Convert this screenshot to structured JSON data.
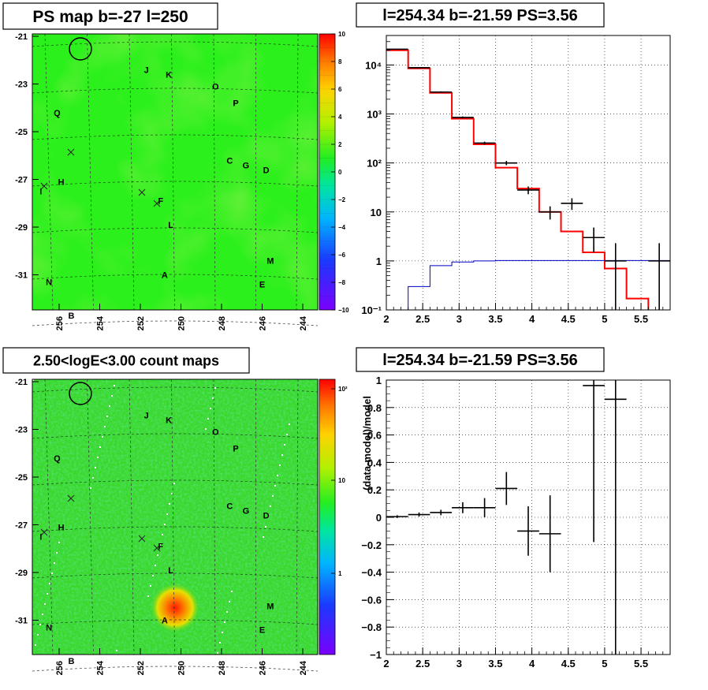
{
  "chart_data": [
    {
      "type": "heatmap",
      "title": "PS map b=-27 l=250",
      "x_ticks": [
        "256",
        "254",
        "252",
        "250",
        "248",
        "246",
        "244"
      ],
      "y_ticks": [
        "-21",
        "-23",
        "-25",
        "-27",
        "-29",
        "-31"
      ],
      "colorbar_ticks": [
        "10",
        "8",
        "6",
        "4",
        "2",
        "0",
        "−2",
        "−4",
        "−6",
        "−8",
        "−10"
      ],
      "colorbar_range": [
        -10,
        10
      ],
      "colors": {
        "background": "#2cf01c",
        "hot": "#a8e01e"
      },
      "grid": true,
      "sources": [
        {
          "label": "J",
          "l": 251.7,
          "b": -22.4
        },
        {
          "label": "K",
          "l": 250.6,
          "b": -22.6
        },
        {
          "label": "O",
          "l": 248.3,
          "b": -23.1
        },
        {
          "label": "P",
          "l": 247.3,
          "b": -23.8
        },
        {
          "label": "Q",
          "l": 256.1,
          "b": -24.2
        },
        {
          "label": "C",
          "l": 247.6,
          "b": -26.2
        },
        {
          "label": "G",
          "l": 246.8,
          "b": -26.4
        },
        {
          "label": "D",
          "l": 245.8,
          "b": -26.6
        },
        {
          "label": "H",
          "l": 255.9,
          "b": -27.1
        },
        {
          "label": "I",
          "l": 256.9,
          "b": -27.5
        },
        {
          "label": "F",
          "l": 251.0,
          "b": -27.9
        },
        {
          "label": "L",
          "l": 250.5,
          "b": -28.9
        },
        {
          "label": "M",
          "l": 245.6,
          "b": -30.4
        },
        {
          "label": "A",
          "l": 250.8,
          "b": -31.0
        },
        {
          "label": "E",
          "l": 246.0,
          "b": -31.4
        },
        {
          "label": "N",
          "l": 256.5,
          "b": -31.3
        },
        {
          "label": "B",
          "l": 255.4,
          "b": -32.7
        }
      ]
    },
    {
      "type": "line",
      "title": "l=254.34 b=-21.59 PS=3.56",
      "x_ticks": [
        "2",
        "2.5",
        "3",
        "3.5",
        "4",
        "4.5",
        "5",
        "5.5"
      ],
      "xlim": [
        2,
        5.9
      ],
      "y_scale": "log",
      "ylim": [
        0.1,
        40000
      ],
      "y_ticks": [
        "10⁻¹",
        "1",
        "10",
        "10²",
        "10³",
        "10⁴"
      ],
      "colors": {
        "model": "#ff0000",
        "ps": "#0000cc",
        "data": "#000000"
      },
      "grid": true,
      "model_edges": [
        2.0,
        2.3,
        2.6,
        2.9,
        3.2,
        3.5,
        3.8,
        4.1,
        4.4,
        4.7,
        5.0,
        5.3,
        5.6,
        5.9
      ],
      "model_values": [
        20000,
        8500,
        2700,
        800,
        240,
        80,
        30,
        10,
        4,
        1.5,
        0.7,
        0.17,
        0.03
      ],
      "ps_edges": [
        2.0,
        2.3,
        2.6,
        2.9,
        3.2,
        3.5,
        5.9
      ],
      "ps_values": [
        0.02,
        0.3,
        0.8,
        0.95,
        1.0,
        1.02
      ],
      "data_points": [
        {
          "x": 2.15,
          "y": 21000,
          "xerr": 0.15,
          "ylo": 20600,
          "yhi": 21400
        },
        {
          "x": 2.45,
          "y": 8800,
          "xerr": 0.15,
          "ylo": 8600,
          "yhi": 9000
        },
        {
          "x": 2.75,
          "y": 2800,
          "xerr": 0.15,
          "ylo": 2700,
          "yhi": 2900
        },
        {
          "x": 3.05,
          "y": 850,
          "xerr": 0.15,
          "ylo": 810,
          "yhi": 890
        },
        {
          "x": 3.35,
          "y": 255,
          "xerr": 0.15,
          "ylo": 238,
          "yhi": 272
        },
        {
          "x": 3.65,
          "y": 100,
          "xerr": 0.15,
          "ylo": 90,
          "yhi": 110
        },
        {
          "x": 3.95,
          "y": 28,
          "xerr": 0.15,
          "ylo": 23,
          "yhi": 33
        },
        {
          "x": 4.25,
          "y": 10,
          "xerr": 0.15,
          "ylo": 7,
          "yhi": 13
        },
        {
          "x": 4.55,
          "y": 15,
          "xerr": 0.15,
          "ylo": 11,
          "yhi": 19
        },
        {
          "x": 4.85,
          "y": 3,
          "xerr": 0.15,
          "ylo": 1.5,
          "yhi": 4.8
        },
        {
          "x": 5.15,
          "y": 1.0,
          "xerr": 0.15,
          "ylo": 0.1,
          "yhi": 2.3
        },
        {
          "x": 5.75,
          "y": 1.0,
          "xerr": 0.15,
          "ylo": 0.1,
          "yhi": 2.3
        }
      ]
    },
    {
      "type": "heatmap",
      "title": "2.50<logE<3.00 count maps",
      "x_ticks": [
        "256",
        "254",
        "252",
        "250",
        "248",
        "246",
        "244"
      ],
      "y_ticks": [
        "-21",
        "-23",
        "-25",
        "-27",
        "-29",
        "-31"
      ],
      "colorbar_ticks": [
        "10²",
        "10",
        "1"
      ],
      "colors": {
        "background": "#3ad82a",
        "hot": "#ff1800"
      },
      "grid": true
    },
    {
      "type": "scatter",
      "title": "l=254.34 b=-21.59 PS=3.56",
      "ylabel": "(data-model)/model",
      "x_ticks": [
        "2",
        "2.5",
        "3",
        "3.5",
        "4",
        "4.5",
        "5",
        "5.5"
      ],
      "xlim": [
        2,
        5.9
      ],
      "y_ticks": [
        "−1",
        "−0.8",
        "−0.6",
        "−0.4",
        "−0.2",
        "0",
        "0.2",
        "0.4",
        "0.6",
        "0.8",
        "1"
      ],
      "ylim": [
        -1,
        1
      ],
      "grid": true,
      "points": [
        {
          "x": 2.15,
          "y": 0.005,
          "xerr": 0.15,
          "yerr": 0.01
        },
        {
          "x": 2.45,
          "y": 0.02,
          "xerr": 0.15,
          "yerr": 0.015
        },
        {
          "x": 2.75,
          "y": 0.035,
          "xerr": 0.15,
          "yerr": 0.02
        },
        {
          "x": 3.05,
          "y": 0.07,
          "xerr": 0.15,
          "yerr": 0.04
        },
        {
          "x": 3.35,
          "y": 0.07,
          "xerr": 0.15,
          "yerr": 0.07
        },
        {
          "x": 3.65,
          "y": 0.21,
          "xerr": 0.15,
          "yerr": 0.12
        },
        {
          "x": 3.95,
          "y": -0.1,
          "xerr": 0.15,
          "yerr": 0.18
        },
        {
          "x": 4.25,
          "y": -0.12,
          "xerr": 0.15,
          "yerr": 0.28
        },
        {
          "x": 4.85,
          "y": 0.96,
          "xerr": 0.15,
          "yerr": 1.14
        },
        {
          "x": 5.15,
          "y": 0.86,
          "xerr": 0.15,
          "yerr": 1.9
        }
      ]
    }
  ]
}
